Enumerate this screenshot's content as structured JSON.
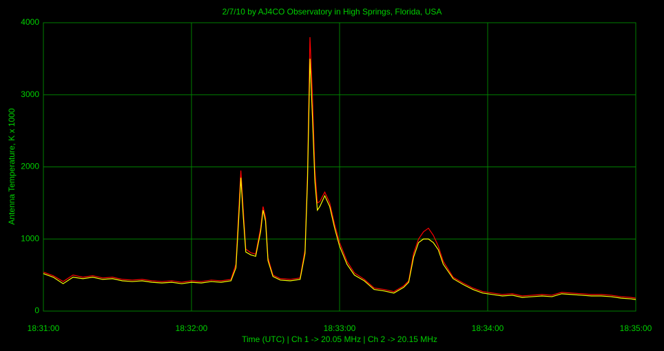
{
  "chart_data": {
    "type": "line",
    "title": "2/7/10  by  AJ4CO Observatory  in  High Springs, Florida, USA",
    "x_label": "Time (UTC)  |  Ch 1 -> 20.05 MHz  |  Ch 2 -> 20.15 MHz",
    "y_label": "Antenna Temperature, K x 1000",
    "x": [
      66660,
      66664,
      66668,
      66672,
      66676,
      66680,
      66684,
      66688,
      66692,
      66696,
      66700,
      66704,
      66708,
      66712,
      66716,
      66720,
      66724,
      66728,
      66732,
      66736,
      66738,
      66739,
      66740,
      66741,
      66742,
      66744,
      66746,
      66748,
      66749,
      66750,
      66751,
      66753,
      66756,
      66760,
      66764,
      66766,
      66767,
      66768,
      66769,
      66770,
      66771,
      66772,
      66774,
      66776,
      66778,
      66780,
      66783,
      66786,
      66790,
      66794,
      66798,
      66802,
      66806,
      66808,
      66810,
      66812,
      66814,
      66816,
      66818,
      66820,
      66822,
      66826,
      66830,
      66834,
      66838,
      66842,
      66846,
      66850,
      66854,
      66858,
      66862,
      66866,
      66870,
      66874,
      66878,
      66882,
      66886,
      66890,
      66894,
      66898,
      66900
    ],
    "series": [
      {
        "color": "#ff0000",
        "values": [
          540,
          490,
          410,
          500,
          470,
          490,
          460,
          470,
          440,
          430,
          440,
          420,
          410,
          420,
          400,
          420,
          410,
          430,
          420,
          440,
          650,
          1300,
          1950,
          1400,
          860,
          810,
          790,
          1150,
          1450,
          1300,
          740,
          500,
          450,
          440,
          460,
          850,
          1900,
          3800,
          3000,
          1950,
          1500,
          1520,
          1650,
          1500,
          1200,
          950,
          690,
          530,
          440,
          320,
          300,
          270,
          350,
          420,
          800,
          1000,
          1100,
          1150,
          1050,
          900,
          690,
          470,
          390,
          320,
          270,
          250,
          230,
          240,
          210,
          220,
          230,
          220,
          260,
          250,
          240,
          230,
          230,
          220,
          200,
          190,
          180
        ]
      },
      {
        "color": "#ffff00",
        "values": [
          520,
          470,
          380,
          470,
          450,
          470,
          440,
          450,
          420,
          410,
          420,
          400,
          390,
          400,
          380,
          400,
          390,
          410,
          400,
          420,
          600,
          1200,
          1850,
          1300,
          820,
          780,
          760,
          1100,
          1400,
          1250,
          700,
          480,
          430,
          420,
          440,
          800,
          1800,
          3500,
          2700,
          1800,
          1400,
          1450,
          1600,
          1450,
          1150,
          900,
          650,
          500,
          420,
          300,
          280,
          250,
          330,
          400,
          750,
          950,
          1000,
          1000,
          950,
          850,
          650,
          450,
          370,
          300,
          250,
          230,
          210,
          220,
          190,
          200,
          210,
          200,
          240,
          230,
          220,
          210,
          210,
          200,
          180,
          170,
          160
        ]
      }
    ],
    "xlim": [
      66660,
      66900
    ],
    "xticks": [
      {
        "value": 66660,
        "label": "18:31:00"
      },
      {
        "value": 66720,
        "label": "18:32:00"
      },
      {
        "value": 66780,
        "label": "18:33:00"
      },
      {
        "value": 66840,
        "label": "18:34:00"
      },
      {
        "value": 66900,
        "label": "18:35:00"
      }
    ],
    "ylim": [
      0,
      4000
    ],
    "yticks": [
      0,
      1000,
      2000,
      3000,
      4000
    ],
    "grid": true
  }
}
